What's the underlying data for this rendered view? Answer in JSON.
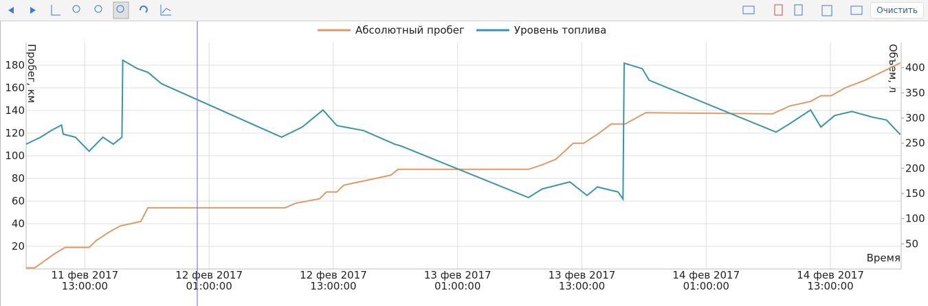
{
  "toolbar": {
    "clear_button": "Очистить"
  },
  "chart_data": {
    "type": "line",
    "x_label": "Время",
    "y_label": "Пробег, км",
    "y2_label": "Объем, л",
    "xlim": [
      "2017-02-11T07:20:00",
      "2017-02-14T19:50:00"
    ],
    "xticks": [
      {
        "value": "2017-02-11T13:00:00",
        "label": "11 фев 2017\n13:00:00"
      },
      {
        "value": "2017-02-12T01:00:00",
        "label": "12 фев 2017\n01:00:00"
      },
      {
        "value": "2017-02-12T13:00:00",
        "label": "12 фев 2017\n13:00:00"
      },
      {
        "value": "2017-02-13T01:00:00",
        "label": "13 фев 2017\n01:00:00"
      },
      {
        "value": "2017-02-13T13:00:00",
        "label": "13 фев 2017\n13:00:00"
      },
      {
        "value": "2017-02-14T01:00:00",
        "label": "14 фев 2017\n01:00:00"
      },
      {
        "value": "2017-02-14T13:00:00",
        "label": "14 фев 2017\n13:00:00"
      }
    ],
    "ylim": [
      0,
      200
    ],
    "yticks": [
      20,
      40,
      60,
      80,
      100,
      120,
      140,
      160,
      180
    ],
    "y2lim": [
      0,
      450
    ],
    "y2ticks": [
      50,
      100,
      150,
      200,
      250,
      300,
      350,
      400
    ],
    "grid": true,
    "legend": "top",
    "series": [
      {
        "name": "Абсолютный пробег",
        "color": "#dd9a68",
        "x": [
          "2017-02-11T07:20:00",
          "2017-02-11T08:10:00",
          "2017-02-11T10:00:00",
          "2017-02-11T11:05:00",
          "2017-02-11T13:25:00",
          "2017-02-11T14:05:00",
          "2017-02-11T15:25:00",
          "2017-02-11T16:25:00",
          "2017-02-11T18:25:00",
          "2017-02-11T19:05:00",
          "2017-02-12T08:20:00",
          "2017-02-12T09:20:00",
          "2017-02-12T11:40:00",
          "2017-02-12T12:20:00",
          "2017-02-12T13:20:00",
          "2017-02-12T14:00:00",
          "2017-02-12T16:35:00",
          "2017-02-12T18:35:00",
          "2017-02-12T19:15:00",
          "2017-02-13T07:50:00",
          "2017-02-13T09:10:00",
          "2017-02-13T10:30:00",
          "2017-02-13T12:10:00",
          "2017-02-13T13:10:00",
          "2017-02-13T14:30:00",
          "2017-02-13T15:50:00",
          "2017-02-13T17:10:00",
          "2017-02-13T19:10:00",
          "2017-02-14T07:25:00",
          "2017-02-14T09:05:00",
          "2017-02-14T11:05:00",
          "2017-02-14T12:05:00",
          "2017-02-14T13:05:00",
          "2017-02-14T14:25:00",
          "2017-02-14T16:25:00",
          "2017-02-14T18:25:00",
          "2017-02-14T19:45:00"
        ],
        "values": [
          1,
          1,
          13,
          19,
          19,
          25,
          33,
          38,
          42,
          54,
          54,
          58,
          62,
          68,
          68,
          74,
          79,
          83,
          88,
          88,
          92,
          97,
          111,
          111,
          119,
          128,
          128,
          138,
          137,
          144,
          148,
          153,
          153,
          160,
          167,
          176,
          182
        ]
      },
      {
        "name": "Уровень топлива",
        "color": "#3a94a8",
        "axis": "y2",
        "x": [
          "2017-02-11T07:20:00",
          "2017-02-11T08:45:00",
          "2017-02-11T09:45:00",
          "2017-02-11T10:45:00",
          "2017-02-11T10:55:00",
          "2017-02-11T12:05:00",
          "2017-02-11T13:25:00",
          "2017-02-11T14:05:00",
          "2017-02-11T14:45:00",
          "2017-02-11T15:45:00",
          "2017-02-11T16:35:00",
          "2017-02-11T16:40:00",
          "2017-02-11T18:05:00",
          "2017-02-11T19:05:00",
          "2017-02-11T20:25:00",
          "2017-02-12T08:00:00",
          "2017-02-12T10:00:00",
          "2017-02-12T12:00:00",
          "2017-02-12T13:20:00",
          "2017-02-12T15:55:00",
          "2017-02-12T18:55:00",
          "2017-02-12T19:35:00",
          "2017-02-13T07:50:00",
          "2017-02-13T09:10:00",
          "2017-02-13T11:50:00",
          "2017-02-13T13:30:00",
          "2017-02-13T14:30:00",
          "2017-02-13T16:30:00",
          "2017-02-13T16:58:00",
          "2017-02-13T17:05:00",
          "2017-02-13T18:50:00",
          "2017-02-13T19:30:00",
          "2017-02-14T07:45:00",
          "2017-02-14T09:05:00",
          "2017-02-14T11:05:00",
          "2017-02-14T12:05:00",
          "2017-02-14T13:25:00",
          "2017-02-14T15:05:00",
          "2017-02-14T17:00:00",
          "2017-02-14T18:25:00",
          "2017-02-14T19:45:00"
        ],
        "values": [
          248,
          262,
          275,
          286,
          268,
          262,
          234,
          248,
          262,
          248,
          262,
          415,
          398,
          391,
          368,
          262,
          282,
          316,
          285,
          275,
          248,
          244,
          142,
          159,
          173,
          146,
          163,
          153,
          139,
          409,
          398,
          375,
          272,
          289,
          316,
          282,
          305,
          313,
          302,
          296,
          267
        ]
      }
    ]
  }
}
